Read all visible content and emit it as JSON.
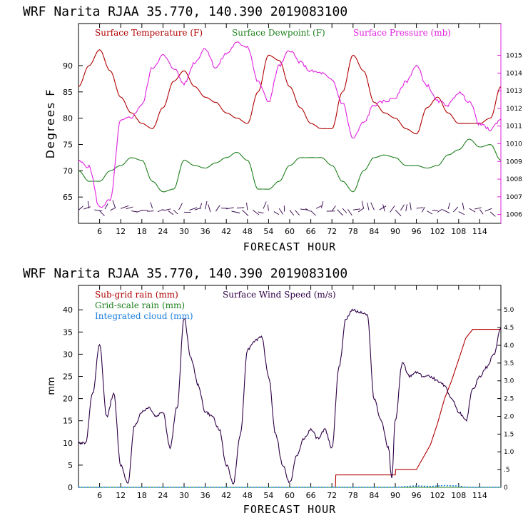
{
  "colors": {
    "red": "#b00000",
    "green": "#208020",
    "magenta": "#e020e0",
    "blue": "#2080e0",
    "purple": "#300048",
    "axis": "#000000"
  },
  "chart_data": [
    {
      "type": "line",
      "title": "WRF   Narita RJAA   35.770, 140.390  2019083100",
      "xlabel": "FORECAST HOUR",
      "ylabel": "Degrees F",
      "xlim": [
        0,
        120
      ],
      "ylim": [
        60,
        98
      ],
      "y2lim": [
        1005.5,
        1016.8
      ],
      "xticks": [
        6,
        12,
        18,
        24,
        30,
        36,
        42,
        48,
        54,
        60,
        66,
        72,
        78,
        84,
        90,
        96,
        102,
        108,
        114
      ],
      "xtick_labels": [
        "6",
        "12",
        "18",
        "24",
        "30",
        "36",
        "42",
        "48",
        "54",
        "60",
        "66",
        "72",
        "78",
        "84",
        "90",
        "96",
        "102",
        "108",
        "114"
      ],
      "yticks": [
        65,
        70,
        75,
        80,
        85,
        90
      ],
      "y2ticks": [
        1006,
        1007,
        1008,
        1009,
        1010,
        1011,
        1012,
        1013,
        1014,
        1015
      ],
      "legend": [
        "Surface Temperature (F)",
        "Surface Dewpoint (F)",
        "Surface Pressure (mb)"
      ],
      "series": [
        {
          "name": "Surface Temperature (F)",
          "color": "red",
          "axis": "left",
          "x": [
            0,
            3,
            6,
            9,
            12,
            15,
            18,
            21,
            24,
            27,
            30,
            33,
            36,
            39,
            42,
            45,
            48,
            51,
            54,
            57,
            60,
            63,
            66,
            69,
            72,
            75,
            78,
            81,
            84,
            87,
            90,
            93,
            96,
            99,
            102,
            105,
            108,
            111,
            114,
            117,
            120
          ],
          "y": [
            86,
            90,
            93,
            89,
            84,
            81,
            79,
            78,
            82,
            87,
            89,
            86,
            84,
            83,
            81,
            80,
            79,
            85,
            92,
            91,
            86,
            82,
            79,
            78,
            78,
            85,
            92,
            89,
            83,
            81,
            80,
            78,
            77,
            82,
            84,
            81,
            79,
            79,
            79,
            80,
            86
          ]
        },
        {
          "name": "Surface Dewpoint (F)",
          "color": "green",
          "axis": "left",
          "x": [
            0,
            3,
            6,
            9,
            12,
            15,
            18,
            21,
            24,
            27,
            30,
            33,
            36,
            39,
            42,
            45,
            48,
            51,
            54,
            57,
            60,
            63,
            66,
            69,
            72,
            75,
            78,
            81,
            84,
            87,
            90,
            93,
            96,
            99,
            102,
            105,
            108,
            111,
            114,
            117,
            120
          ],
          "y": [
            70,
            68,
            68,
            70,
            71,
            72.5,
            72,
            68,
            66,
            66.5,
            72,
            71,
            70.5,
            71.5,
            72.5,
            73.5,
            72,
            66.5,
            66.5,
            68,
            71,
            72.5,
            72.5,
            72.5,
            71,
            68,
            66,
            70,
            72.5,
            73,
            72.5,
            71,
            71,
            70.5,
            71,
            73,
            74,
            76,
            74.5,
            75,
            72
          ]
        },
        {
          "name": "Surface Pressure (mb)",
          "color": "magenta",
          "axis": "right",
          "x": [
            0,
            3,
            6,
            9,
            12,
            15,
            18,
            21,
            24,
            27,
            30,
            33,
            36,
            39,
            42,
            45,
            48,
            51,
            54,
            57,
            60,
            63,
            66,
            69,
            72,
            75,
            78,
            81,
            84,
            87,
            90,
            93,
            96,
            99,
            102,
            105,
            108,
            111,
            114,
            117,
            120
          ],
          "y": [
            1009,
            1008.7,
            1006.4,
            1006.8,
            1011.3,
            1011.5,
            1012.2,
            1014.3,
            1015,
            1014.3,
            1013.4,
            1014.6,
            1015.4,
            1014.3,
            1015.1,
            1015.7,
            1015.5,
            1013.5,
            1012.4,
            1014.4,
            1015.3,
            1014.6,
            1014.1,
            1014,
            1013.6,
            1012.3,
            1010.3,
            1011.2,
            1012.2,
            1012.4,
            1012.6,
            1013.5,
            1014.4,
            1013.3,
            1012.4,
            1012.2,
            1012.9,
            1012.4,
            1011.1,
            1010.8,
            1011.4
          ]
        }
      ],
      "wind_barbs_present": true
    },
    {
      "type": "line",
      "title": "WRF   Narita RJAA   35.770, 140.390  2019083100",
      "xlabel": "FORECAST HOUR",
      "ylabel": "mm",
      "xlim": [
        0,
        120
      ],
      "ylim": [
        0,
        45.5
      ],
      "y2lim": [
        0,
        5.6875
      ],
      "xticks": [
        6,
        12,
        18,
        24,
        30,
        36,
        42,
        48,
        54,
        60,
        66,
        72,
        78,
        84,
        90,
        96,
        102,
        108,
        114
      ],
      "xtick_labels": [
        "6",
        "12",
        "18",
        "24",
        "30",
        "36",
        "42",
        "48",
        "54",
        "60",
        "66",
        "72",
        "78",
        "84",
        "90",
        "96",
        "102",
        "108",
        "114"
      ],
      "yticks": [
        0,
        5,
        10,
        15,
        20,
        25,
        30,
        35,
        40
      ],
      "y2ticks": [
        0,
        0.5,
        1.0,
        1.5,
        2.0,
        2.5,
        3.0,
        3.5,
        4.0,
        4.5,
        5.0
      ],
      "y2tick_labels": [
        "0",
        ".5",
        "1.0",
        "1.5",
        "2.0",
        "2.5",
        "3.0",
        "3.5",
        "4.0",
        "4.5",
        "5.0"
      ],
      "legend": [
        "Sub-grid rain (mm)",
        "Surface Wind Speed (m/s)",
        "Grid-scale rain (mm)",
        "Integrated cloud (mm)"
      ],
      "series": [
        {
          "name": "Sub-grid rain (mm)",
          "color": "red",
          "axis": "right",
          "x": [
            0,
            73,
            73.1,
            90,
            90.1,
            96,
            100,
            102,
            104,
            106,
            108,
            110,
            112,
            114,
            116,
            118,
            120
          ],
          "y": [
            0,
            0,
            0.35,
            0.35,
            0.5,
            0.5,
            1.2,
            1.8,
            2.5,
            3.0,
            3.6,
            4.2,
            4.45,
            4.45,
            4.45,
            4.45,
            4.45
          ]
        },
        {
          "name": "Surface Wind Speed (m/s)",
          "color": "purple",
          "axis": "left",
          "x": [
            0,
            2,
            4,
            6,
            8,
            10,
            12,
            14,
            16,
            18,
            20,
            22,
            24,
            26,
            28,
            30,
            32,
            34,
            36,
            38,
            40,
            42,
            44,
            46,
            48,
            50,
            52,
            54,
            56,
            58,
            60,
            62,
            64,
            66,
            68,
            70,
            72,
            74,
            76,
            78,
            80,
            82,
            84,
            86,
            88,
            89,
            90,
            92,
            94,
            96,
            98,
            100,
            102,
            104,
            106,
            108,
            110,
            112,
            114,
            116,
            118,
            120
          ],
          "y": [
            10,
            10,
            21,
            32,
            16,
            21,
            5,
            1,
            14,
            17,
            18,
            16,
            17,
            9,
            18,
            38,
            29,
            23,
            17,
            16,
            13,
            5,
            1,
            12,
            31,
            33,
            34,
            25,
            12,
            5,
            1,
            7,
            11,
            13,
            11,
            13,
            9,
            27,
            38,
            40,
            39.5,
            39,
            20,
            15,
            9,
            2,
            15,
            28,
            25,
            26,
            25,
            25,
            24,
            23,
            20,
            17,
            15,
            22,
            25,
            27,
            30,
            36
          ]
        },
        {
          "name": "Grid-scale rain (mm)",
          "color": "green",
          "axis": "right",
          "x": [
            0,
            120
          ],
          "y": [
            0,
            0
          ]
        },
        {
          "name": "Integrated cloud (mm)",
          "color": "blue",
          "axis": "left",
          "x": [
            0,
            30,
            60,
            90,
            96,
            100,
            104,
            108,
            110,
            120
          ],
          "y": [
            0,
            0,
            0,
            0,
            0.3,
            0.2,
            0.4,
            0.3,
            0,
            0
          ]
        }
      ]
    }
  ]
}
